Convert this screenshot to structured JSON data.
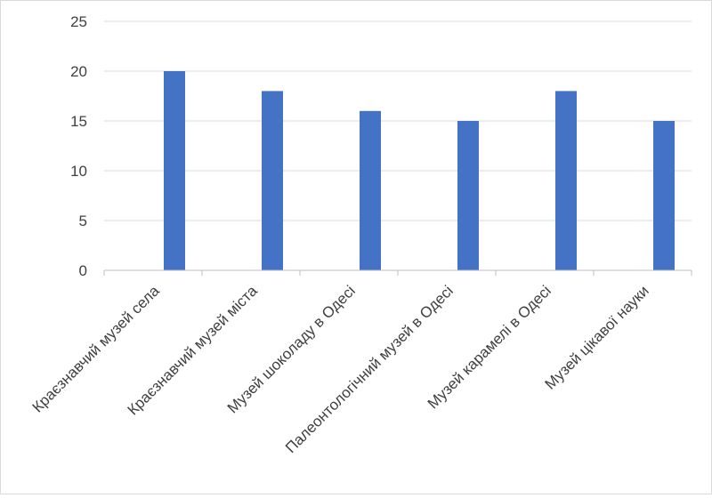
{
  "chart_data": {
    "type": "bar",
    "categories": [
      "Краєзнавчий музей села",
      "Краєзнавчий музей міста",
      "Музей шоколаду в Одесі",
      "Палеонтологічний музей в Одесі",
      "Музей карамелі в Одесі",
      "Музей цікавої науки"
    ],
    "series": [
      {
        "values": [
          20,
          18,
          16,
          15,
          18,
          15
        ]
      }
    ],
    "ylim": [
      0,
      25
    ],
    "yticks": [
      0,
      5,
      10,
      15,
      20,
      25
    ],
    "grid": true,
    "legend": "none",
    "colors": {
      "bar": "#4472c4",
      "grid": "#d9d9d9",
      "axis": "#bfbfbf",
      "text": "#404040"
    }
  }
}
